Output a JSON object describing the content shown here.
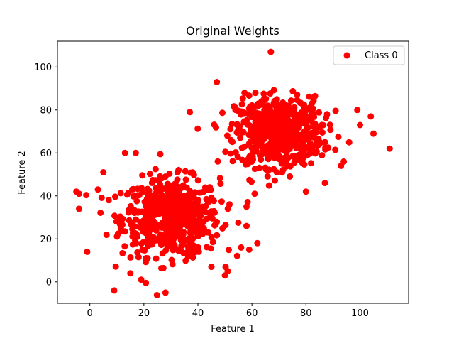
{
  "chart_data": {
    "type": "scatter",
    "title": "Original Weights",
    "xlabel": "Feature 1",
    "ylabel": "Feature 2",
    "xlim": [
      -12,
      118
    ],
    "ylim": [
      -10,
      112
    ],
    "xticks": [
      0,
      20,
      40,
      60,
      80,
      100
    ],
    "yticks": [
      0,
      20,
      40,
      60,
      80,
      100
    ],
    "grid": false,
    "legend_position": "top-right",
    "series": [
      {
        "name": "Class 0",
        "color": "#ff0000",
        "marker": "circle",
        "clusters": [
          {
            "center": [
              30,
              30
            ],
            "spread": [
              9,
              9
            ],
            "count": 600
          },
          {
            "center": [
              70,
              70
            ],
            "spread": [
              8,
              8
            ],
            "count": 600
          }
        ],
        "points": [
          [
            67,
            107
          ],
          [
            111,
            62
          ],
          [
            105,
            69
          ],
          [
            104,
            77
          ],
          [
            100,
            73
          ],
          [
            96,
            65
          ],
          [
            99,
            80
          ],
          [
            -5,
            42
          ],
          [
            -4,
            41
          ],
          [
            -4,
            34
          ],
          [
            -1,
            14
          ],
          [
            5,
            51
          ],
          [
            9,
            -4
          ],
          [
            28,
            -5
          ],
          [
            50,
            3
          ],
          [
            51,
            5
          ],
          [
            56,
            16
          ],
          [
            59,
            15
          ],
          [
            58,
            26
          ],
          [
            62,
            18
          ],
          [
            80,
            42
          ],
          [
            87,
            46
          ],
          [
            37,
            79
          ],
          [
            47,
            93
          ],
          [
            58,
            35
          ],
          [
            61,
            41
          ],
          [
            93,
            54
          ],
          [
            94,
            56
          ],
          [
            13,
            60
          ],
          [
            17,
            60
          ],
          [
            3,
            43
          ],
          [
            7,
            38
          ],
          [
            15,
            4
          ],
          [
            19,
            1
          ],
          [
            45,
            7
          ]
        ]
      }
    ]
  }
}
